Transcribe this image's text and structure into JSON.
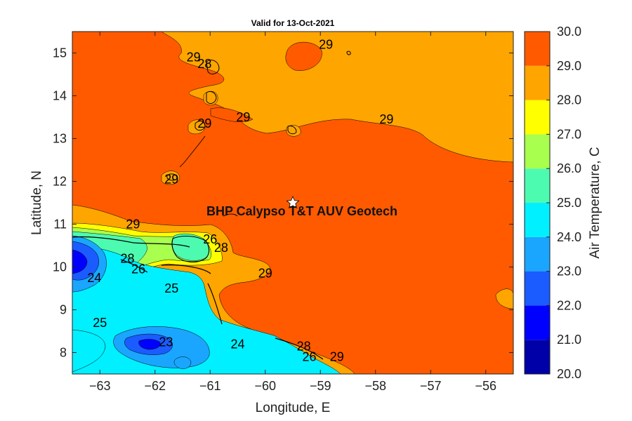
{
  "chart_data": {
    "type": "filled-contour-map",
    "title": "Valid for 13-Oct-2021",
    "xlabel": "Longitude, E",
    "ylabel": "Latitude, N",
    "xlim": [
      -63.5,
      -55.5
    ],
    "ylim": [
      7.5,
      15.5
    ],
    "xticks": [
      -63,
      -62,
      -61,
      -60,
      -59,
      -58,
      -57,
      -56
    ],
    "yticks": [
      8,
      9,
      10,
      11,
      12,
      13,
      14,
      15
    ],
    "grid": false,
    "colorbar": {
      "label": "Air Temperature, C",
      "levels": [
        "20.0",
        "21.0",
        "22.0",
        "23.0",
        "24.0",
        "25.0",
        "26.0",
        "27.0",
        "28.0",
        "29.0",
        "30.0"
      ],
      "colors": [
        "#0000a8",
        "#0000ff",
        "#1a5cff",
        "#1aa6ff",
        "#00f0ff",
        "#4dfbb0",
        "#a8ff4d",
        "#ffff00",
        "#ffa500",
        "#ff5a00"
      ]
    },
    "annotation": {
      "text": "BHP Calypso T&T AUV Geotech",
      "marker": "star",
      "lon": -59.5,
      "lat": 11.5
    },
    "contour_labels": [
      {
        "text": "29",
        "lon": -58.9,
        "lat": 15.2
      },
      {
        "text": "29",
        "lon": -61.3,
        "lat": 14.9
      },
      {
        "text": "28",
        "lon": -61.1,
        "lat": 14.75
      },
      {
        "text": "29",
        "lon": -60.4,
        "lat": 13.5
      },
      {
        "text": "29",
        "lon": -57.8,
        "lat": 13.45
      },
      {
        "text": "29",
        "lon": -61.1,
        "lat": 13.35
      },
      {
        "text": "29",
        "lon": -61.7,
        "lat": 12.05
      },
      {
        "text": "29",
        "lon": -62.4,
        "lat": 11.0
      },
      {
        "text": "26",
        "lon": -61.0,
        "lat": 10.65
      },
      {
        "text": "28",
        "lon": -60.8,
        "lat": 10.45
      },
      {
        "text": "28",
        "lon": -62.5,
        "lat": 10.2
      },
      {
        "text": "26",
        "lon": -62.3,
        "lat": 9.95
      },
      {
        "text": "24",
        "lon": -63.1,
        "lat": 9.75
      },
      {
        "text": "25",
        "lon": -61.7,
        "lat": 9.5
      },
      {
        "text": "29",
        "lon": -60.0,
        "lat": 9.85
      },
      {
        "text": "25",
        "lon": -63.0,
        "lat": 8.7
      },
      {
        "text": "23",
        "lon": -61.8,
        "lat": 8.25
      },
      {
        "text": "24",
        "lon": -60.5,
        "lat": 8.2
      },
      {
        "text": "28",
        "lon": -59.3,
        "lat": 8.15
      },
      {
        "text": "29",
        "lon": -58.7,
        "lat": 7.9
      },
      {
        "text": "26",
        "lon": -59.2,
        "lat": 7.9
      }
    ]
  }
}
